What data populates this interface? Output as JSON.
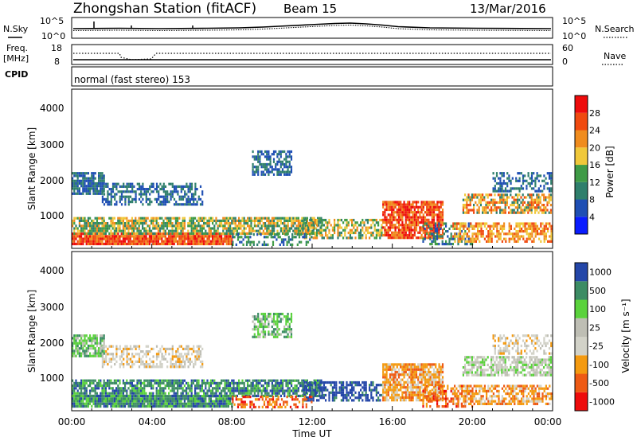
{
  "header": {
    "station": "Zhongshan Station (fitACF)",
    "beam": "Beam 15",
    "date": "13/Mar/2016"
  },
  "sky_panel": {
    "left_label": "N.Sky",
    "right_label": "N.Search",
    "left_ticks": [
      "10^5",
      "10^0"
    ],
    "right_ticks": [
      "10^5",
      "10^0"
    ]
  },
  "freq_panel": {
    "left_label_1": "Freq.",
    "left_label_2": "[MHz]",
    "left_ticks": [
      "18",
      "8"
    ],
    "right_label": "Nave",
    "right_ticks": [
      "60",
      "0"
    ]
  },
  "cpid": {
    "label": "CPID",
    "value": "normal (fast stereo) 153"
  },
  "colors": {
    "power": [
      "#0a1cff",
      "#1f4fb4",
      "#2f7f6c",
      "#3f9b46",
      "#f0c83a",
      "#f08c1e",
      "#f04a10",
      "#ee0c0c"
    ],
    "velocity": [
      "#ee0c0c",
      "#ee5a14",
      "#f49a10",
      "#d2d2c8",
      "#bebeb4",
      "#5ad23c",
      "#3c8c64",
      "#2446a8"
    ]
  },
  "chart_data": [
    {
      "type": "heatmap",
      "title": "Power",
      "ylabel": "Slant Range [km]",
      "yticks": [
        "1000",
        "2000",
        "3000",
        "4000"
      ],
      "ylim": [
        180,
        4600
      ],
      "xlim": [
        0,
        24
      ],
      "colorbar_label": "Power [dB]",
      "colorbar_ticks": [
        "4",
        "8",
        "12",
        "16",
        "20",
        "24",
        "28"
      ],
      "colorbar_range": [
        0,
        32
      ]
    },
    {
      "type": "heatmap",
      "title": "Velocity",
      "ylabel": "Slant Range [km]",
      "yticks": [
        "1000",
        "2000",
        "3000",
        "4000"
      ],
      "ylim": [
        180,
        4600
      ],
      "xlim": [
        0,
        24
      ],
      "colorbar_label": "Velocity [m s⁻¹]",
      "colorbar_ticks": [
        "-1000",
        "-500",
        "-100",
        "-25",
        "25",
        "100",
        "500",
        "1000"
      ],
      "xticks": [
        "00:00",
        "04:00",
        "08:00",
        "12:00",
        "16:00",
        "20:00",
        "00:00"
      ],
      "xlabel": "Time UT"
    }
  ]
}
